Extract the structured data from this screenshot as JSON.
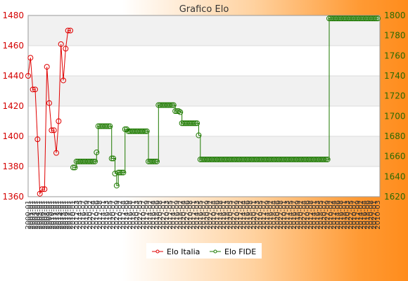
{
  "chart_data": {
    "type": "line",
    "title": "Grafico Elo",
    "y_left": {
      "ticks": [
        1360,
        1380,
        1400,
        1420,
        1440,
        1460,
        1480
      ],
      "range": [
        1360,
        1480
      ],
      "color": "#e00000"
    },
    "y_right": {
      "ticks": [
        1620,
        1640,
        1660,
        1680,
        1700,
        1720,
        1740,
        1760,
        1780,
        1800
      ],
      "range": [
        1620,
        1800
      ],
      "color": "#1e7a00"
    },
    "grid": true,
    "legend_position": "bottom",
    "series": [
      {
        "name": "Elo Italia",
        "axis": "left",
        "color": "#e00000",
        "values": [
          1440,
          1452,
          1431,
          1431,
          1398,
          1362,
          1365,
          1365,
          1446,
          1422,
          1404,
          1404,
          1389,
          1410,
          1461,
          1437,
          1458,
          1470,
          1470
        ]
      },
      {
        "name": "Elo FIDE",
        "axis": "right",
        "color": "#1e7a00",
        "values": [
          1649,
          1649,
          1655,
          1655,
          1655,
          1655,
          1655,
          1655,
          1655,
          1655,
          1655,
          1655,
          1655,
          1655,
          1664,
          1690,
          1690,
          1690,
          1690,
          1690,
          1690,
          1690,
          1690,
          1658,
          1658,
          1643,
          1631,
          1644,
          1644,
          1644,
          1644,
          1687,
          1687,
          1685,
          1685,
          1685,
          1685,
          1685,
          1685,
          1685,
          1685,
          1685,
          1685,
          1685,
          1685,
          1655,
          1655,
          1655,
          1655,
          1655,
          1655,
          1711,
          1711,
          1711,
          1711,
          1711,
          1711,
          1711,
          1711,
          1711,
          1711,
          1705,
          1705,
          1705,
          1704,
          1693,
          1693,
          1693,
          1693,
          1693,
          1693,
          1693,
          1693,
          1693,
          1693,
          1681,
          1657,
          1657,
          1657,
          1657,
          1657,
          1657,
          1657,
          1657,
          1657,
          1657,
          1657,
          1657,
          1657,
          1657,
          1657,
          1657,
          1657,
          1657,
          1657,
          1657,
          1657,
          1657,
          1657,
          1657,
          1657,
          1657,
          1657,
          1657,
          1657,
          1657,
          1657,
          1657,
          1657,
          1657,
          1657,
          1657,
          1657,
          1657,
          1657,
          1657,
          1657,
          1657,
          1657,
          1657,
          1657,
          1657,
          1657,
          1657,
          1657,
          1657,
          1657,
          1657,
          1657,
          1657,
          1657,
          1657,
          1657,
          1657,
          1657,
          1657,
          1657,
          1657,
          1657,
          1657,
          1657,
          1657,
          1657,
          1657,
          1657,
          1657,
          1657,
          1657,
          1657,
          1657,
          1657,
          1657,
          1657,
          1797,
          1797,
          1797,
          1797,
          1797,
          1797,
          1797,
          1797,
          1797,
          1797,
          1797,
          1797,
          1797,
          1797,
          1797,
          1797,
          1797,
          1797,
          1797,
          1797,
          1797,
          1797,
          1797,
          1797,
          1797,
          1797,
          1797,
          1797,
          1797,
          1797
        ]
      }
    ]
  },
  "x_axis": {
    "labels_left": [
      "2",
      "2",
      "2",
      "2",
      "2",
      "2",
      "2",
      "2"
    ],
    "labels_right": [
      "2",
      "2",
      "2",
      "2"
    ]
  }
}
